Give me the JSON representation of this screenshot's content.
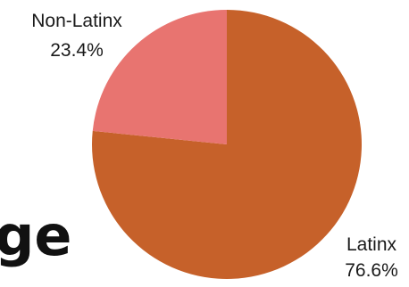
{
  "chart_data": {
    "type": "pie",
    "slices": [
      {
        "label": "Latinx",
        "value": 76.6,
        "value_label": "76.6%",
        "color": "#C6612A"
      },
      {
        "label": "Non-Latinx",
        "value": 23.4,
        "value_label": "23.4%",
        "color": "#E87470"
      }
    ]
  },
  "background_text": "ge"
}
